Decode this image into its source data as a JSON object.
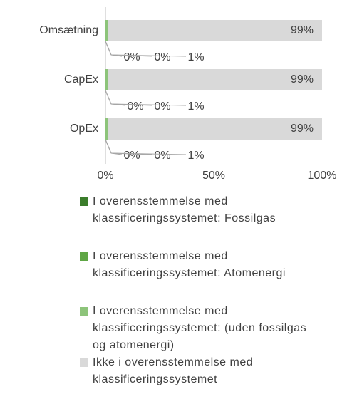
{
  "chart_data": {
    "type": "bar",
    "orientation": "horizontal",
    "stacked": true,
    "categories": [
      "Omsætning",
      "CapEx",
      "OpEx"
    ],
    "series": [
      {
        "name": "I overensstemmelse med klassificeringssystemet: Fossilgas",
        "color": "#3b7d2b",
        "values": [
          0,
          0,
          0
        ],
        "value_labels": [
          "0%",
          "0%",
          "0%"
        ]
      },
      {
        "name": "I overensstemmelse med klassificeringssystemet: Atomenergi",
        "color": "#5fa645",
        "values": [
          0,
          0,
          0
        ],
        "value_labels": [
          "0%",
          "0%",
          "0%"
        ]
      },
      {
        "name": "I overensstemmelse med klassificeringssystemet: (uden fossilgas og atomenergi)",
        "color": "#8dc47a",
        "values": [
          1,
          1,
          1
        ],
        "value_labels": [
          "1%",
          "1%",
          "1%"
        ]
      },
      {
        "name": "Ikke i overensstemmelse med klassificeringssystemet",
        "color": "#d9d9d9",
        "values": [
          99,
          99,
          99
        ],
        "value_labels": [
          "99%",
          "99%",
          "99%"
        ]
      }
    ],
    "xlim": [
      0,
      100
    ],
    "xticks": [
      {
        "value": 0,
        "label": "0%"
      },
      {
        "value": 50,
        "label": "50%"
      },
      {
        "value": 100,
        "label": "100%"
      }
    ],
    "legend": "bottom"
  }
}
